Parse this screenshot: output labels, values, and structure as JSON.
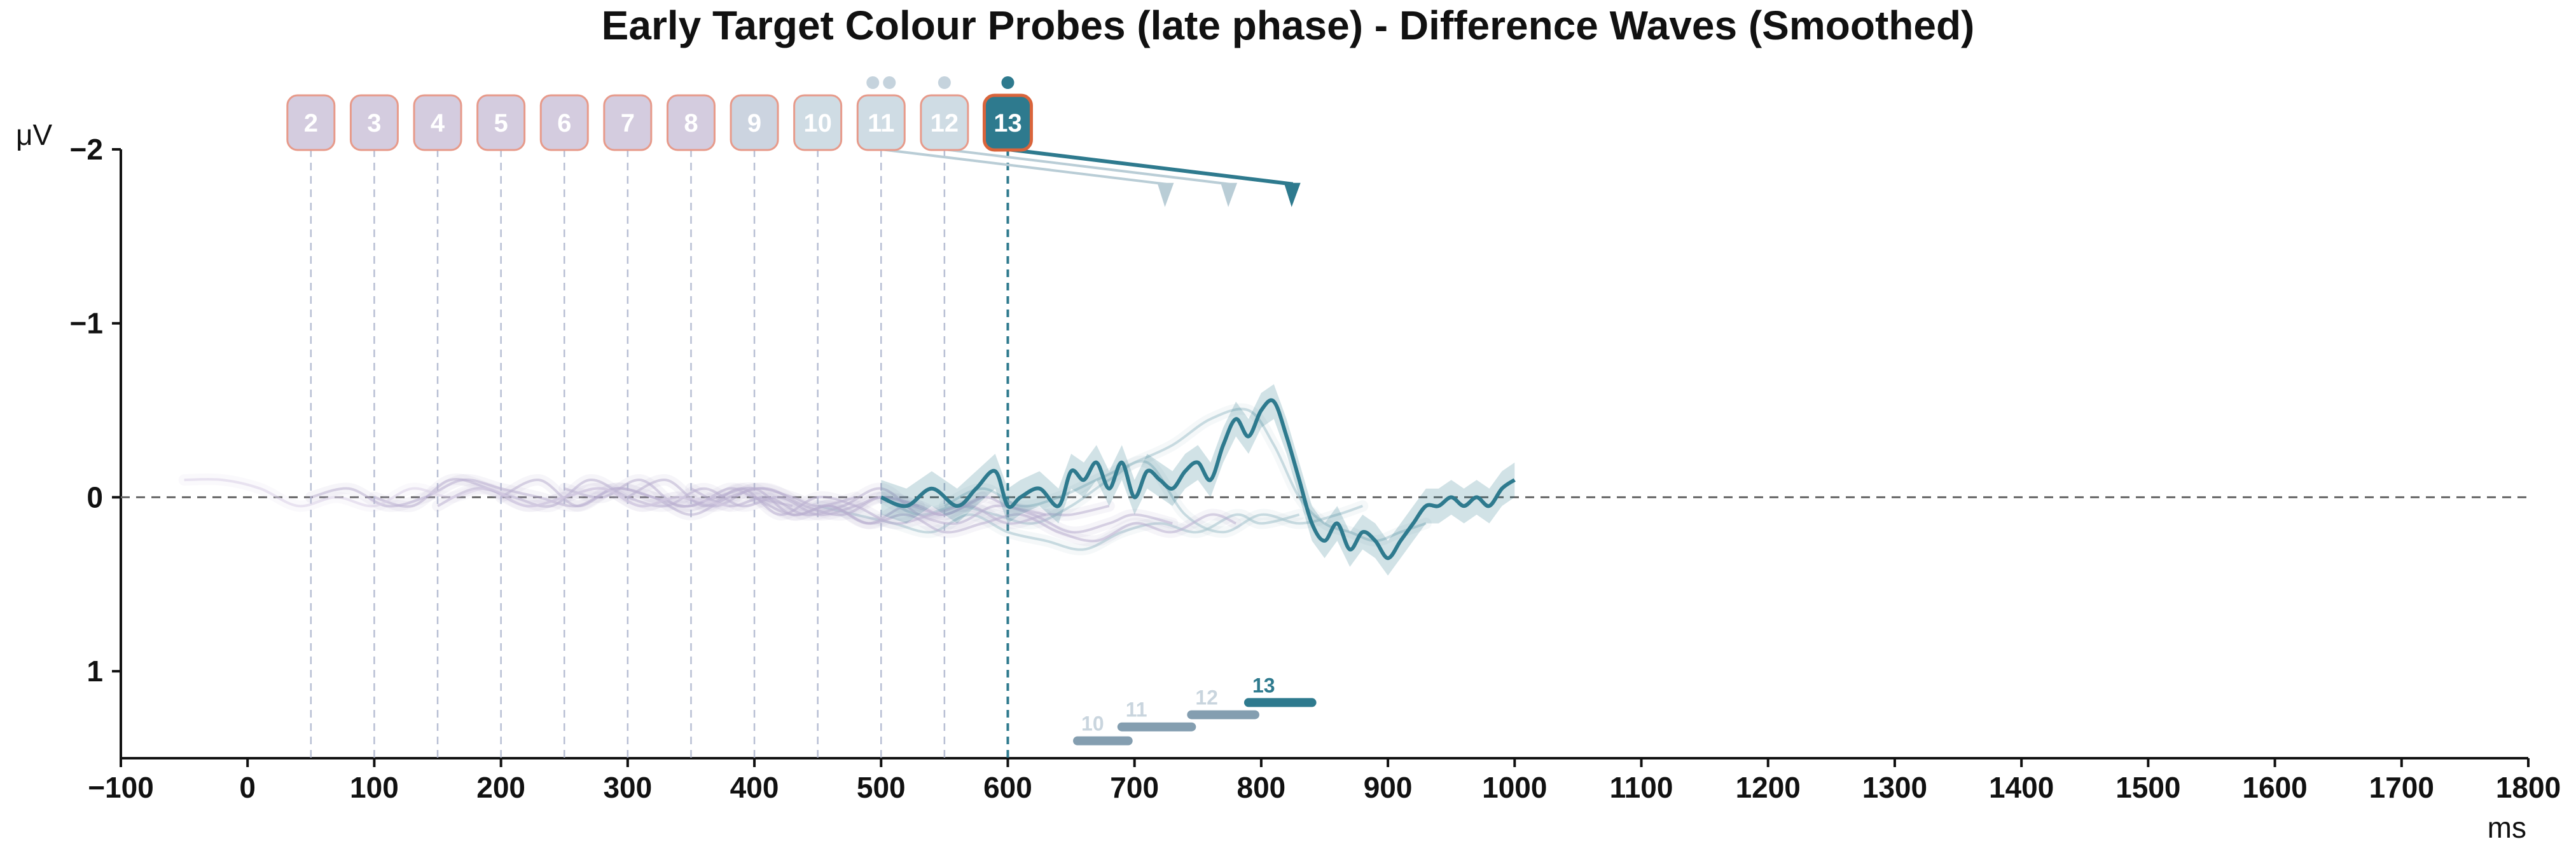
{
  "chart_data": {
    "type": "line",
    "title": "Early Target Colour Probes (late phase) - Difference Waves (Smoothed)",
    "xlabel": "ms",
    "ylabel": "μV",
    "xlim": [
      -100,
      1800
    ],
    "ylim": [
      -2,
      1.5
    ],
    "y_inverted": true,
    "x_ticks": [
      -100,
      0,
      100,
      200,
      300,
      400,
      500,
      600,
      700,
      800,
      900,
      1000,
      1100,
      1200,
      1300,
      1400,
      1500,
      1600,
      1700,
      1800
    ],
    "y_ticks": [
      -2,
      -1,
      0,
      1
    ],
    "zero_line": true,
    "colors": {
      "highlight": "#2e7a8e",
      "early_probe": "#b9aed0",
      "mid_probe": "#c9d3de",
      "faint_trace": "#d8cfe6",
      "probe_border": "#e79a8a",
      "highlight_border": "#d9643b",
      "zero_line": "#666666"
    },
    "probes": [
      {
        "label": "2",
        "onset": 50
      },
      {
        "label": "3",
        "onset": 100
      },
      {
        "label": "4",
        "onset": 150
      },
      {
        "label": "5",
        "onset": 200
      },
      {
        "label": "6",
        "onset": 250
      },
      {
        "label": "7",
        "onset": 300
      },
      {
        "label": "8",
        "onset": 350
      },
      {
        "label": "9",
        "onset": 400
      },
      {
        "label": "10",
        "onset": 450
      },
      {
        "label": "11",
        "onset": 500
      },
      {
        "label": "12",
        "onset": 550
      },
      {
        "label": "13",
        "onset": 600,
        "highlighted": true
      }
    ],
    "series": [
      {
        "label": "13",
        "highlighted": true,
        "x": [
          500,
          520,
          540,
          560,
          575,
          590,
          600,
          610,
          625,
          640,
          650,
          660,
          670,
          680,
          690,
          700,
          710,
          720,
          730,
          740,
          750,
          760,
          770,
          780,
          790,
          800,
          810,
          820,
          830,
          840,
          850,
          860,
          870,
          880,
          890,
          900,
          910,
          920,
          930,
          940,
          950,
          960,
          970,
          980,
          990,
          1000
        ],
        "y": [
          0,
          0.05,
          -0.05,
          0.05,
          -0.05,
          -0.15,
          0.05,
          0,
          -0.05,
          0.05,
          -0.15,
          -0.1,
          -0.2,
          -0.05,
          -0.2,
          0,
          -0.15,
          -0.1,
          -0.05,
          -0.15,
          -0.2,
          -0.1,
          -0.3,
          -0.45,
          -0.35,
          -0.5,
          -0.55,
          -0.35,
          -0.1,
          0.15,
          0.25,
          0.15,
          0.3,
          0.2,
          0.25,
          0.35,
          0.25,
          0.15,
          0.05,
          0.05,
          0,
          0.05,
          0,
          0.05,
          -0.05,
          -0.1
        ],
        "band": 0.1
      },
      {
        "label": "12",
        "x": [
          550,
          580,
          610,
          640,
          670,
          700,
          730,
          760,
          790,
          810,
          830,
          850,
          870,
          890,
          910,
          930
        ],
        "y": [
          0.05,
          -0.05,
          0.05,
          0,
          -0.1,
          -0.2,
          -0.3,
          -0.45,
          -0.5,
          -0.3,
          0,
          0.15,
          0.2,
          0.25,
          0.2,
          0.15
        ]
      },
      {
        "label": "11",
        "x": [
          500,
          530,
          560,
          590,
          620,
          650,
          680,
          710,
          740,
          770,
          800,
          830,
          860,
          880
        ],
        "y": [
          0,
          0.1,
          0.05,
          0.1,
          0.15,
          0.05,
          -0.1,
          -0.2,
          0.1,
          0.2,
          0.1,
          0.15,
          0.1,
          0.05
        ]
      },
      {
        "label": "10",
        "x": [
          450,
          480,
          510,
          540,
          570,
          600,
          630,
          660,
          690,
          720,
          750,
          780,
          800,
          830
        ],
        "y": [
          0.05,
          0.1,
          0.15,
          0.2,
          0.1,
          0.2,
          0.25,
          0.3,
          0.2,
          0.15,
          0.2,
          0.1,
          0.15,
          0.1
        ]
      },
      {
        "label": "9",
        "x": [
          400,
          430,
          460,
          490,
          520,
          550,
          580,
          610,
          640,
          670,
          700,
          730,
          760,
          780
        ],
        "y": [
          0,
          0.1,
          0.05,
          0.15,
          0.1,
          0.2,
          0.15,
          0.1,
          0.2,
          0.25,
          0.15,
          0.2,
          0.1,
          0.15
        ]
      },
      {
        "label": "8",
        "x": [
          350,
          380,
          410,
          440,
          470,
          500,
          530,
          560,
          590,
          620,
          650,
          680,
          700,
          730
        ],
        "y": [
          -0.05,
          0.05,
          0,
          0.1,
          0.05,
          -0.05,
          0.1,
          0.15,
          0.05,
          0.1,
          0.2,
          0.15,
          0.1,
          0.15
        ]
      },
      {
        "label": "7",
        "x": [
          300,
          330,
          360,
          390,
          420,
          450,
          480,
          510,
          540,
          570,
          600,
          630,
          650,
          680
        ],
        "y": [
          0,
          -0.1,
          0.05,
          -0.05,
          0.1,
          0,
          0.05,
          0.15,
          0.1,
          0.05,
          0.15,
          0.1,
          0.1,
          0.05
        ]
      },
      {
        "label": "6",
        "x": [
          250,
          280,
          310,
          340,
          370,
          400,
          430,
          460,
          490,
          520,
          550,
          580,
          600,
          630
        ],
        "y": [
          -0.05,
          0,
          -0.1,
          0.05,
          0,
          -0.05,
          0.1,
          0.05,
          0.15,
          0.05,
          0.1,
          0,
          0.05,
          0.1
        ]
      },
      {
        "label": "5",
        "x": [
          200,
          230,
          260,
          290,
          320,
          350,
          380,
          410,
          440,
          470,
          500,
          530,
          550,
          580
        ],
        "y": [
          0,
          -0.1,
          0.05,
          -0.05,
          0,
          0.1,
          0,
          -0.05,
          0.05,
          0.1,
          0,
          0.05,
          0.1,
          0
        ]
      },
      {
        "label": "4",
        "x": [
          150,
          180,
          210,
          240,
          270,
          300,
          330,
          360,
          390,
          420,
          450,
          480,
          500,
          530
        ],
        "y": [
          0.05,
          -0.05,
          0,
          0.05,
          -0.1,
          0,
          0.05,
          -0.05,
          0.05,
          0,
          0.1,
          0.05,
          0,
          0.05
        ]
      },
      {
        "label": "3",
        "x": [
          100,
          130,
          160,
          190,
          220,
          250,
          280,
          310,
          340,
          370,
          400,
          430,
          450,
          480
        ],
        "y": [
          0,
          0.05,
          -0.1,
          -0.05,
          0.05,
          0,
          -0.05,
          0.05,
          0,
          0.05,
          -0.05,
          0,
          0.05,
          0
        ]
      },
      {
        "label": "2",
        "x": [
          50,
          80,
          110,
          140,
          170,
          200,
          230,
          260,
          290,
          320,
          350,
          380,
          400,
          430
        ],
        "y": [
          0,
          -0.05,
          0.05,
          0,
          -0.1,
          -0.05,
          0,
          0.05,
          -0.05,
          0,
          0.05,
          -0.05,
          0,
          0.05
        ]
      },
      {
        "label": "",
        "x": [
          -50,
          -20,
          10,
          40,
          70,
          100,
          130,
          160,
          190,
          220,
          250,
          280,
          310,
          340,
          380
        ],
        "y": [
          -0.1,
          -0.1,
          -0.05,
          0.05,
          0,
          0.05,
          -0.05,
          0,
          -0.05,
          0.05,
          0,
          -0.05,
          0.05,
          0,
          0.05
        ]
      }
    ],
    "bars": [
      {
        "label": "10",
        "start": 655,
        "end": 695,
        "y": 1.4
      },
      {
        "label": "11",
        "start": 690,
        "end": 745,
        "y": 1.32
      },
      {
        "label": "12",
        "start": 745,
        "end": 795,
        "y": 1.25
      },
      {
        "label": "13",
        "start": 790,
        "end": 840,
        "y": 1.18,
        "highlighted": true
      }
    ],
    "pointers": [
      {
        "label": "11",
        "from_x": 500,
        "from_y": -2.0,
        "to_x": 725,
        "to_y": -1.8
      },
      {
        "label": "12",
        "from_x": 550,
        "from_y": -2.0,
        "to_x": 775,
        "to_y": -1.8
      },
      {
        "label": "13",
        "from_x": 600,
        "from_y": -2.0,
        "to_x": 825,
        "to_y": -1.8,
        "highlighted": true
      }
    ],
    "dots": [
      {
        "label": "11",
        "count": 2
      },
      {
        "label": "12",
        "count": 1
      },
      {
        "label": "13",
        "count": 1
      }
    ]
  }
}
